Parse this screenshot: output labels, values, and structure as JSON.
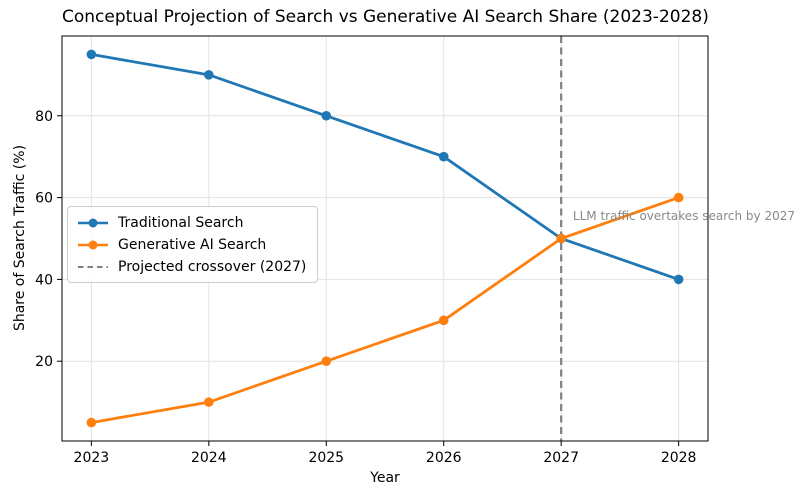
{
  "figure": {
    "background": "#ffffff"
  },
  "chart_data": {
    "type": "line",
    "title": "Conceptual Projection of Search vs Generative AI Search Share (2023-2028)",
    "xlabel": "Year",
    "ylabel": "Share of Search Traffic (%)",
    "x": [
      2023,
      2024,
      2025,
      2026,
      2027,
      2028
    ],
    "xticks": [
      2023,
      2024,
      2025,
      2026,
      2027,
      2028
    ],
    "yticks": [
      20,
      40,
      60,
      80
    ],
    "xlim": [
      2022.75,
      2028.25
    ],
    "ylim": [
      0.5,
      99.5
    ],
    "grid": true,
    "grid_color": "#e2e2e2",
    "spine_color": "#000000",
    "legend_position": "center-left",
    "series": [
      {
        "name": "Traditional Search",
        "color": "#1f77b4",
        "marker": "circle",
        "values": [
          95,
          90,
          80,
          70,
          50,
          40
        ]
      },
      {
        "name": "Generative AI Search",
        "color": "#ff7f0e",
        "marker": "circle",
        "values": [
          5,
          10,
          20,
          30,
          50,
          60
        ]
      }
    ],
    "crossover_line": {
      "x": 2027,
      "label": "Projected crossover (2027)",
      "color": "#808080",
      "style": "dashed"
    },
    "annotation": {
      "text": "LLM traffic overtakes search by 2027",
      "x": 2027.1,
      "y": 55,
      "color": "#8a8a8a"
    }
  }
}
